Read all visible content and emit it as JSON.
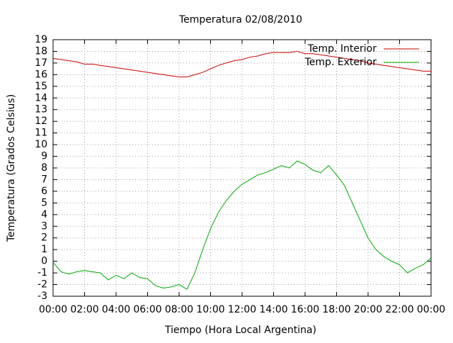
{
  "chart_data": {
    "type": "line",
    "title": "Temperatura 02/08/2010",
    "x_label": "Tiempo (Hora Local Argentina)",
    "y_label": "Temperatura (Grados Celsius)",
    "x": [
      0,
      0.5,
      1,
      1.5,
      2,
      2.5,
      3,
      3.5,
      4,
      4.5,
      5,
      5.5,
      6,
      6.5,
      7,
      7.5,
      8,
      8.5,
      9,
      9.5,
      10,
      10.5,
      11,
      11.5,
      12,
      12.5,
      13,
      13.5,
      14,
      14.5,
      15,
      15.5,
      16,
      16.5,
      17,
      17.5,
      18,
      18.5,
      19,
      19.5,
      20,
      20.5,
      21,
      21.5,
      22,
      22.5,
      23,
      23.5,
      24
    ],
    "series": [
      {
        "name": "Temp. Interior",
        "color": "#cc0000",
        "values": [
          17.4,
          17.3,
          17.2,
          17.1,
          16.9,
          16.9,
          16.8,
          16.7,
          16.6,
          16.5,
          16.4,
          16.3,
          16.2,
          16.1,
          16.0,
          15.9,
          15.8,
          15.8,
          16.0,
          16.2,
          16.5,
          16.8,
          17.0,
          17.2,
          17.3,
          17.5,
          17.6,
          17.8,
          17.9,
          17.9,
          17.9,
          18.0,
          17.8,
          17.8,
          17.7,
          17.6,
          17.5,
          17.4,
          17.3,
          17.2,
          17.0,
          16.9,
          16.8,
          16.7,
          16.6,
          16.5,
          16.4,
          16.3,
          16.3
        ]
      },
      {
        "name": "Temp. Exterior",
        "color": "#00aa00",
        "values": [
          -0.1,
          -0.9,
          -1.1,
          -0.9,
          -0.8,
          -0.9,
          -1.0,
          -1.6,
          -1.2,
          -1.5,
          -1.0,
          -1.4,
          -1.5,
          -2.1,
          -2.3,
          -2.2,
          -2.0,
          -2.4,
          -1.0,
          1.0,
          2.8,
          4.2,
          5.2,
          6.0,
          6.6,
          7.0,
          7.4,
          7.6,
          7.9,
          8.2,
          8.0,
          8.6,
          8.3,
          7.8,
          7.6,
          8.2,
          7.4,
          6.5,
          5.0,
          3.5,
          2.0,
          1.0,
          0.4,
          0.0,
          -0.3,
          -1.0,
          -0.6,
          -0.3,
          0.3
        ]
      }
    ],
    "xlim": [
      0,
      24
    ],
    "xticks": [
      {
        "value": 0,
        "label": "00:00"
      },
      {
        "value": 2,
        "label": "02:00"
      },
      {
        "value": 4,
        "label": "04:00"
      },
      {
        "value": 6,
        "label": "06:00"
      },
      {
        "value": 8,
        "label": "08:00"
      },
      {
        "value": 10,
        "label": "10:00"
      },
      {
        "value": 12,
        "label": "12:00"
      },
      {
        "value": 14,
        "label": "14:00"
      },
      {
        "value": 16,
        "label": "16:00"
      },
      {
        "value": 18,
        "label": "18:00"
      },
      {
        "value": 20,
        "label": "20:00"
      },
      {
        "value": 22,
        "label": "22:00"
      },
      {
        "value": 24,
        "label": "00:00"
      }
    ],
    "ylim": [
      -3,
      19
    ],
    "yticks": [
      -3,
      -2,
      -1,
      0,
      1,
      2,
      3,
      4,
      5,
      6,
      7,
      8,
      9,
      10,
      11,
      12,
      13,
      14,
      15,
      16,
      17,
      18,
      19
    ],
    "grid": true,
    "legend": "top-right"
  }
}
